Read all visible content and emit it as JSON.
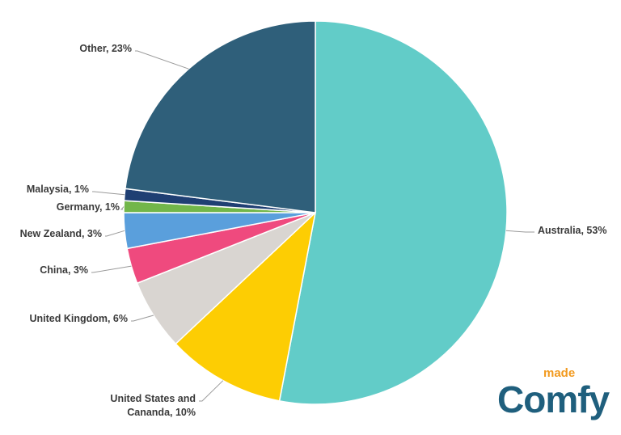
{
  "chart_data": {
    "type": "pie",
    "title": "",
    "slices": [
      {
        "label": "Australia, 53%",
        "value": 53,
        "color": "#62ccc8"
      },
      {
        "label": "United States and Cananda, 10%",
        "value": 10,
        "color": "#fdcd03"
      },
      {
        "label": "United Kingdom, 6%",
        "value": 6,
        "color": "#d9d5d1"
      },
      {
        "label": "China, 3%",
        "value": 3,
        "color": "#ef4a7e"
      },
      {
        "label": "New Zealand, 3%",
        "value": 3,
        "color": "#5a9fdc"
      },
      {
        "label": "Germany, 1%",
        "value": 1,
        "color": "#72b64a"
      },
      {
        "label": "Malaysia, 1%",
        "value": 1,
        "color": "#1f3f73"
      },
      {
        "label": "Other, 23%",
        "value": 23,
        "color": "#2f5f7a"
      }
    ]
  },
  "logo": {
    "made": "made",
    "comfy": "Comfy",
    "made_color": "#f29a1f",
    "comfy_color": "#1f5f7d"
  }
}
